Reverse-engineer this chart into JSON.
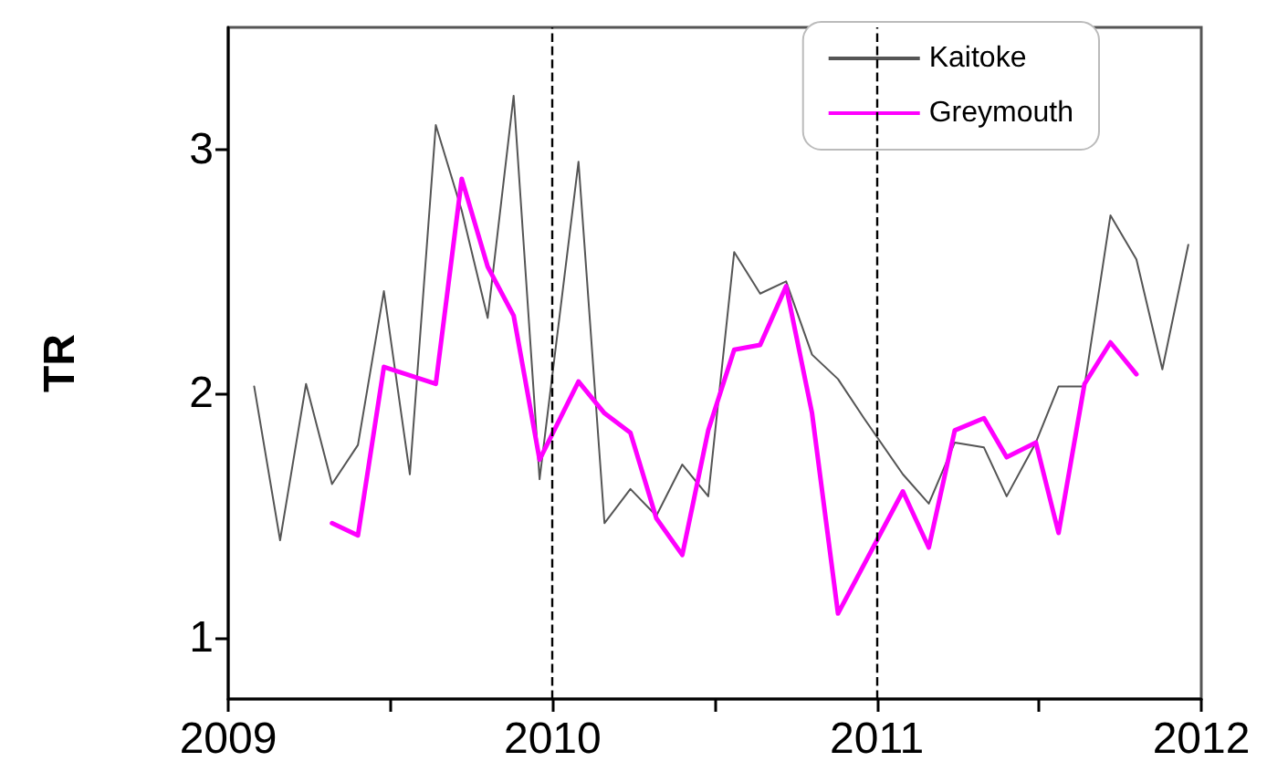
{
  "chart_data": {
    "type": "line",
    "ylabel": "TR",
    "xlim": [
      2009,
      2012
    ],
    "xticks": [
      2009,
      {
        "value": 2009.5,
        "label": null
      },
      2010,
      {
        "value": 2010.5,
        "label": null
      },
      2011,
      {
        "value": 2011.5,
        "label": null
      },
      2012
    ],
    "ylim": [
      0.75,
      3.5
    ],
    "yticks": [
      1,
      2,
      3
    ],
    "grid": false,
    "legend": "top right",
    "marker": "none",
    "line_style": "solid",
    "ref_lines": [
      {
        "axis": "x",
        "value": 2010,
        "label": null,
        "color": "#000000",
        "line_style": "dashed"
      },
      {
        "axis": "x",
        "value": 2011,
        "label": null,
        "color": "#000000",
        "line_style": "dashed"
      }
    ],
    "series": [
      {
        "name": "Kaitoke",
        "color": "#555555",
        "x": [
          2009.08,
          2009.16,
          2009.24,
          2009.32,
          2009.4,
          2009.48,
          2009.56,
          2009.64,
          2009.72,
          2009.8,
          2009.88,
          2009.96,
          2010.08,
          2010.16,
          2010.24,
          2010.32,
          2010.4,
          2010.48,
          2010.56,
          2010.64,
          2010.72,
          2010.8,
          2010.88,
          2010.96,
          2011.08,
          2011.16,
          2011.24,
          2011.33,
          2011.4,
          2011.49,
          2011.56,
          2011.64,
          2011.72,
          2011.8,
          2011.88,
          2011.96
        ],
        "values": [
          2.03,
          1.4,
          2.04,
          1.63,
          1.79,
          2.42,
          1.67,
          3.1,
          2.75,
          2.31,
          3.22,
          1.65,
          2.95,
          1.47,
          1.61,
          1.5,
          1.71,
          1.58,
          2.58,
          2.41,
          2.46,
          2.16,
          2.06,
          1.9,
          1.67,
          1.55,
          1.8,
          1.78,
          1.58,
          1.8,
          2.03,
          2.03,
          2.73,
          2.55,
          2.1,
          2.61
        ]
      },
      {
        "name": "Greymouth",
        "color": "#ff00ff",
        "x": [
          2009.32,
          2009.4,
          2009.48,
          2009.64,
          2009.72,
          2009.8,
          2009.88,
          2009.96,
          2010.08,
          2010.16,
          2010.24,
          2010.32,
          2010.4,
          2010.48,
          2010.56,
          2010.64,
          2010.72,
          2010.8,
          2010.88,
          2011.08,
          2011.16,
          2011.24,
          2011.33,
          2011.4,
          2011.49,
          2011.56,
          2011.64,
          2011.72,
          2011.8
        ],
        "values": [
          1.47,
          1.42,
          2.11,
          2.04,
          2.88,
          2.52,
          2.32,
          1.73,
          2.05,
          1.92,
          1.84,
          1.49,
          1.34,
          1.85,
          2.18,
          2.2,
          2.44,
          1.92,
          1.1,
          1.6,
          1.37,
          1.85,
          1.9,
          1.74,
          1.8,
          1.43,
          2.04,
          2.21,
          2.08
        ]
      }
    ]
  }
}
